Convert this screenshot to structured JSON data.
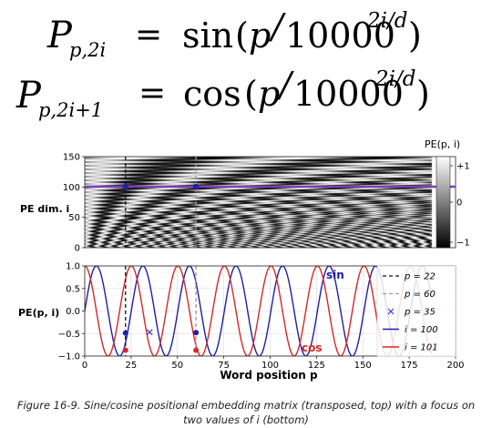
{
  "equations": [
    {
      "lhs_base": "P",
      "lhs_sub": "p,2i",
      "eq": "=",
      "fn": "sin",
      "open": "(",
      "p": "p",
      "slash": "/",
      "base": "10000",
      "exp": "2i/d",
      "close": ")"
    },
    {
      "lhs_base": "P",
      "lhs_sub": "p,2i+1",
      "eq": "=",
      "fn": "cos",
      "open": "(",
      "p": "p",
      "slash": "/",
      "base": "10000",
      "exp": "2i/d",
      "close": ")"
    }
  ],
  "caption": {
    "line1": "Figure 16-9. Sine/cosine positional embedding matrix (transposed, top) with a focus on",
    "line2": "two values of i (bottom)"
  },
  "colors": {
    "sin": "#1f1fa8",
    "cos": "#d62728",
    "highlight": "#7b3fb8",
    "dashed_p22": "#111111",
    "dashed_p60": "#999999",
    "cross": "#3a3ad8"
  },
  "chart_data": [
    {
      "type": "heatmap",
      "title": "",
      "ylabel": "PE dim. i",
      "xlim": [
        0,
        200
      ],
      "ylim": [
        0,
        150
      ],
      "yticks": [
        "0",
        "50",
        "100",
        "150"
      ],
      "x_range_shown": [
        0,
        187
      ],
      "highlight_rows": [
        100,
        101
      ],
      "markers_p": [
        22,
        60
      ],
      "value_formula": "i even: sin(p/10000^(i/d)); i odd: cos(p/10000^((i-1)/d)); d=512",
      "colorbar": {
        "title": "PE(p, i)",
        "ticks": [
          "+1",
          "0",
          "−1"
        ],
        "range": [
          -1,
          1
        ],
        "cmap": "gray"
      }
    },
    {
      "type": "line",
      "xlabel": "Word position p",
      "ylabel": "PE(p, i)",
      "xlim": [
        0,
        200
      ],
      "ylim": [
        -1.0,
        1.0
      ],
      "xticks": [
        "0",
        "25",
        "50",
        "75",
        "100",
        "125",
        "150",
        "175",
        "200"
      ],
      "yticks": [
        "1.0",
        "0.5",
        "0.0",
        "−0.5",
        "−1.0"
      ],
      "grid": true,
      "curve_labels": [
        "sin",
        "cos"
      ],
      "series": [
        {
          "name": "i = 100",
          "fn": "sin",
          "period": 25.1,
          "x_start": 0,
          "x_end": 187
        },
        {
          "name": "i = 101",
          "fn": "cos",
          "period": 25.1,
          "x_start": 0,
          "x_end": 187
        }
      ],
      "vlines": [
        {
          "name": "p = 22",
          "x": 22
        },
        {
          "name": "p = 60",
          "x": 60
        }
      ],
      "points": [
        {
          "p": 22,
          "series": "i = 100",
          "value": -0.49
        },
        {
          "p": 22,
          "series": "i = 101",
          "value": -0.87
        },
        {
          "p": 60,
          "series": "i = 100",
          "value": -0.48
        },
        {
          "p": 60,
          "series": "i = 101",
          "value": -0.87
        }
      ],
      "cross_marker": {
        "name": "p = 35",
        "x": 35,
        "value": -0.47
      },
      "legend": {
        "placement": "right",
        "entries": [
          "p = 22",
          "p = 60",
          "p = 35",
          "i = 100",
          "i = 101"
        ]
      }
    }
  ]
}
